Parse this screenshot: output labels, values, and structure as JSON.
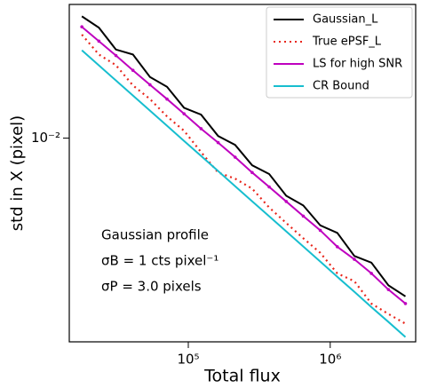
{
  "chart_data": {
    "type": "line",
    "xlabel": "Total flux",
    "ylabel": "std in X (pixel)",
    "xscale": "log",
    "yscale": "log",
    "x": [
      17783,
      23442,
      30903,
      40738,
      53703,
      70795,
      93325,
      123027,
      162181,
      213796,
      281838,
      371535,
      489779,
      645654,
      851138,
      1122018,
      1479108,
      1949845,
      2570396,
      3388442
    ],
    "series": [
      {
        "name": "Gaussian_L",
        "color": "#000000",
        "style": "solid",
        "values": [
          0.0305,
          0.0275,
          0.0225,
          0.0215,
          0.0175,
          0.016,
          0.0132,
          0.0124,
          0.0102,
          0.0094,
          0.0078,
          0.0072,
          0.0059,
          0.0054,
          0.0045,
          0.0042,
          0.0034,
          0.0032,
          0.0026,
          0.00235
        ]
      },
      {
        "name": "True ePSF_L",
        "color": "#e8261c",
        "style": "dotted",
        "values": [
          0.0258,
          0.0215,
          0.0195,
          0.0162,
          0.0143,
          0.0122,
          0.0107,
          0.0088,
          0.0073,
          0.0069,
          0.0063,
          0.0053,
          0.0046,
          0.004,
          0.0035,
          0.0029,
          0.0027,
          0.0022,
          0.002,
          0.00183
        ]
      },
      {
        "name": "LS for high SNR",
        "color": "#bf00bf",
        "style": "solid-marker",
        "values": [
          0.0277,
          0.0243,
          0.0213,
          0.0186,
          0.0163,
          0.0143,
          0.0125,
          0.0109,
          0.0096,
          0.0084,
          0.0073,
          0.0064,
          0.0056,
          0.0049,
          0.0043,
          0.0037,
          0.0033,
          0.0029,
          0.0025,
          0.0022
        ]
      },
      {
        "name": "CR Bound",
        "color": "#17becf",
        "style": "solid",
        "values": [
          0.02234,
          0.01946,
          0.01695,
          0.01477,
          0.01286,
          0.0112,
          0.00975,
          0.0085,
          0.0074,
          0.00644,
          0.00561,
          0.00489,
          0.00426,
          0.00371,
          0.00323,
          0.00281,
          0.00245,
          0.00213,
          0.00186,
          0.00162
        ]
      }
    ],
    "xlim": [
      14500,
      4000000
    ],
    "ylim": [
      0.00155,
      0.034
    ],
    "xticks": [
      {
        "value": 100000,
        "label": "10⁵"
      },
      {
        "value": 1000000,
        "label": "10⁶"
      }
    ],
    "yticks": [
      {
        "value": 0.01,
        "label": "10⁻²"
      }
    ],
    "legend": "upper right",
    "annotations": [
      "Gaussian profile",
      "σB = 1 cts pixel⁻¹",
      "σP = 3.0 pixels"
    ]
  }
}
